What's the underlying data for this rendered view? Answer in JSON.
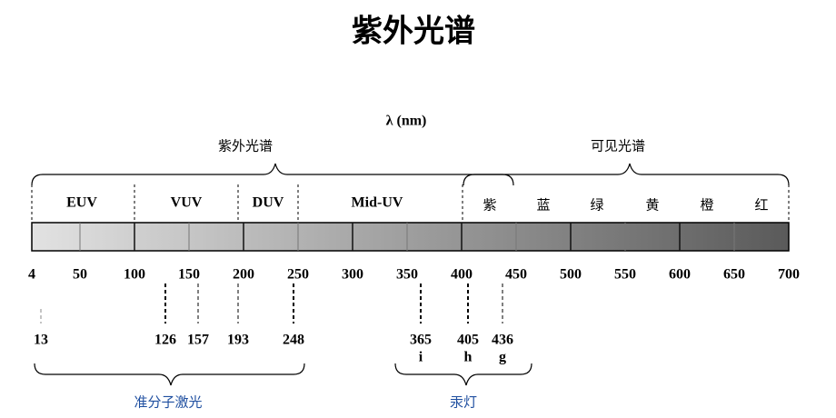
{
  "title": "紫外光谱",
  "axis_label": "λ (nm)",
  "regions": [
    "紫外光谱",
    "可见光谱"
  ],
  "bands": [
    "EUV",
    "VUV",
    "DUV",
    "Mid-UV"
  ],
  "visible_colors": [
    "紫",
    "蓝",
    "绿",
    "黄",
    "橙",
    "红"
  ],
  "ticks": [
    4,
    50,
    100,
    150,
    200,
    250,
    300,
    350,
    400,
    450,
    500,
    550,
    600,
    650,
    700
  ],
  "markers": [
    {
      "label": "13"
    },
    {
      "label": "126"
    },
    {
      "label": "157"
    },
    {
      "label": "193"
    },
    {
      "label": "248"
    },
    {
      "label": "365",
      "sub": "i"
    },
    {
      "label": "405",
      "sub": "h"
    },
    {
      "label": "436",
      "sub": "g"
    }
  ],
  "sources": [
    "准分子激光",
    "汞灯"
  ]
}
